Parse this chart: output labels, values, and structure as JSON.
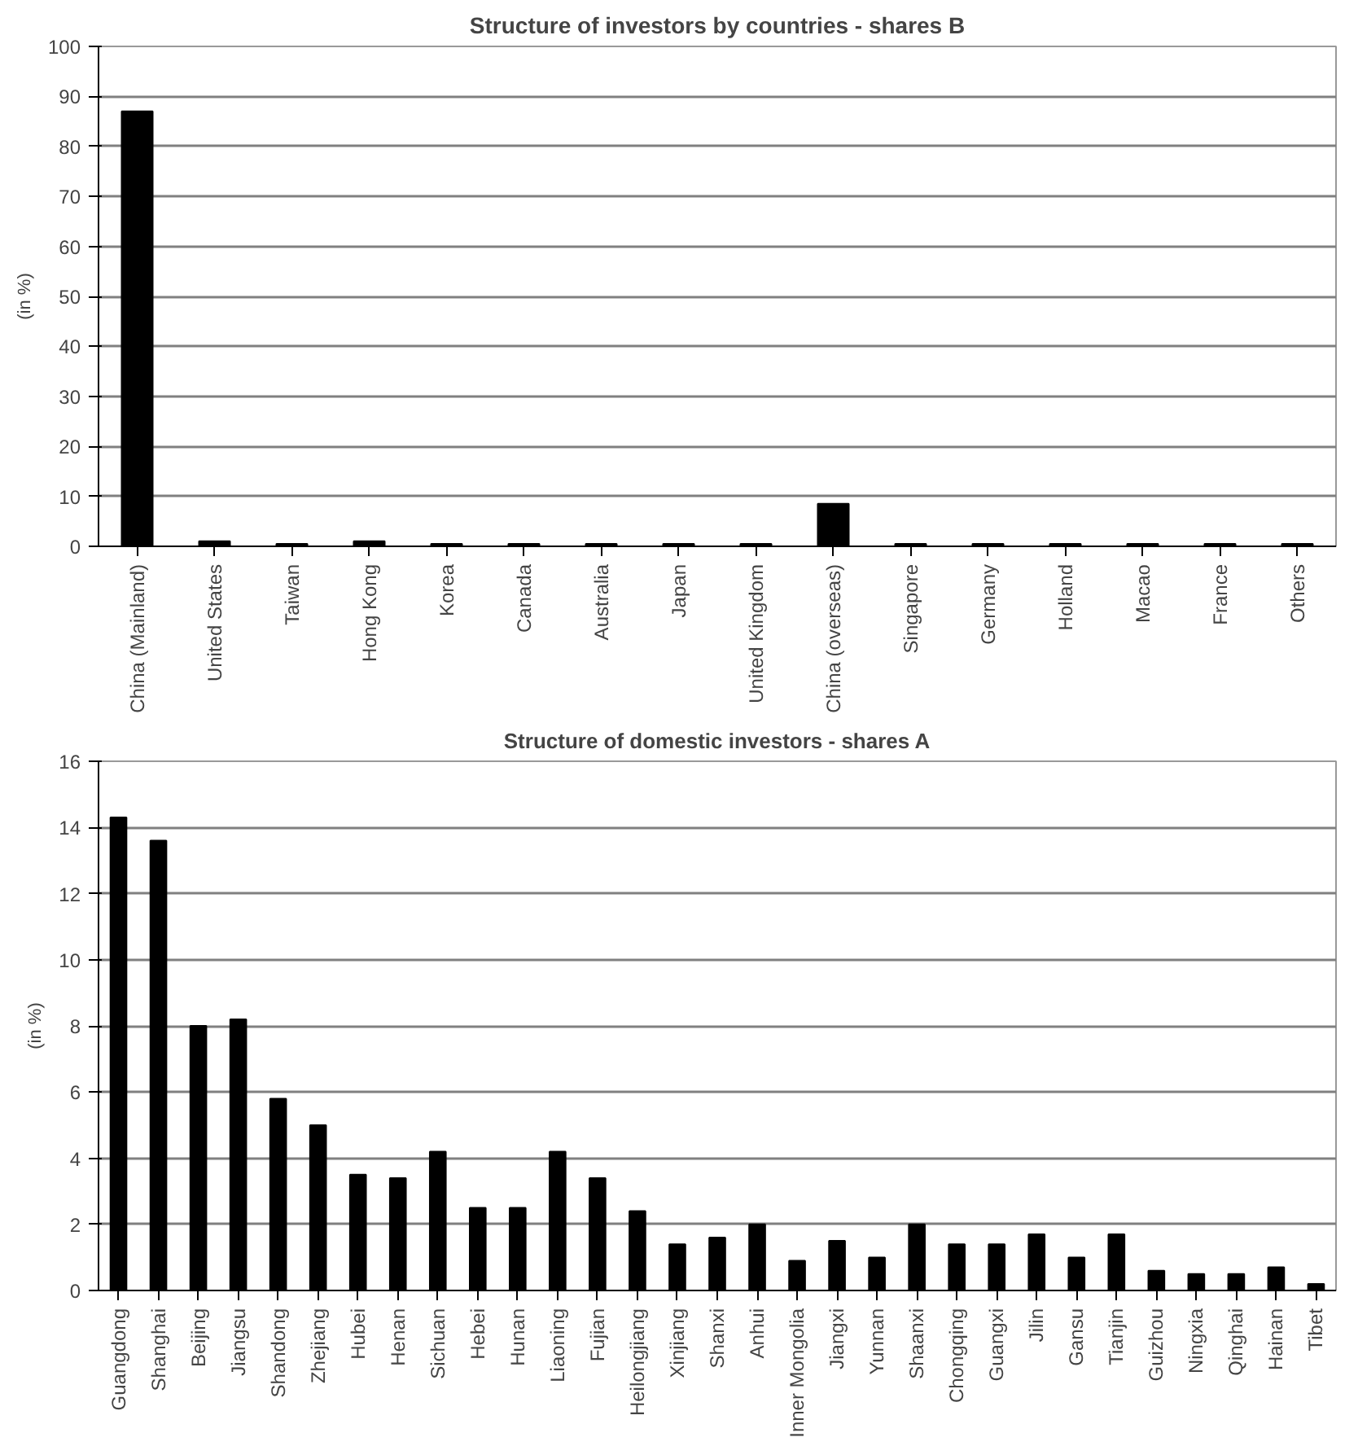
{
  "chart_data": [
    {
      "type": "bar",
      "title": "Structure of investors by countries - shares B",
      "ylabel": "(in %)",
      "categories": [
        "China (Mainland)",
        "United States",
        "Taiwan",
        "Hong Kong",
        "Korea",
        "Canada",
        "Australia",
        "Japan",
        "United Kingdom",
        "China (overseas)",
        "Singapore",
        "Germany",
        "Holland",
        "Macao",
        "France",
        "Others"
      ],
      "values": [
        87,
        1,
        0.5,
        1,
        0.5,
        0.5,
        0.5,
        0.5,
        0.5,
        8.5,
        0.5,
        0.5,
        0.5,
        0.5,
        0.5,
        0.5
      ],
      "color": "#000000",
      "ylim": [
        0,
        100
      ],
      "yticks": [
        0,
        10,
        20,
        30,
        40,
        50,
        60,
        70,
        80,
        90,
        100
      ],
      "grid": "y"
    },
    {
      "type": "bar",
      "title": "Structure of domestic investors - shares A",
      "ylabel": "(in %)",
      "categories": [
        "Guangdong",
        "Shanghai",
        "Beijing",
        "Jiangsu",
        "Shandong",
        "Zhejiang",
        "Hubei",
        "Henan",
        "Sichuan",
        "Hebei",
        "Hunan",
        "Liaoning",
        "Fujian",
        "Heilongjiang",
        "Xinjiang",
        "Shanxi",
        "Anhui",
        "Inner Mongolia",
        "Jiangxi",
        "Yunnan",
        "Shaanxi",
        "Chongqing",
        "Guangxi",
        "Jilin",
        "Gansu",
        "Tianjin",
        "Guizhou",
        "Ningxia",
        "Qinghai",
        "Hainan",
        "Tibet"
      ],
      "values": [
        14.3,
        13.6,
        8.0,
        8.2,
        5.8,
        5.0,
        3.5,
        3.4,
        4.2,
        2.5,
        2.5,
        4.2,
        3.4,
        2.4,
        1.4,
        1.6,
        2.0,
        0.9,
        1.5,
        1.0,
        2.0,
        1.4,
        1.4,
        1.7,
        1.0,
        1.7,
        0.6,
        0.5,
        0.5,
        0.7,
        0.2
      ],
      "color": "#000000",
      "ylim": [
        0,
        16
      ],
      "yticks": [
        0,
        2,
        4,
        6,
        8,
        10,
        12,
        14,
        16
      ],
      "grid": "y"
    }
  ]
}
